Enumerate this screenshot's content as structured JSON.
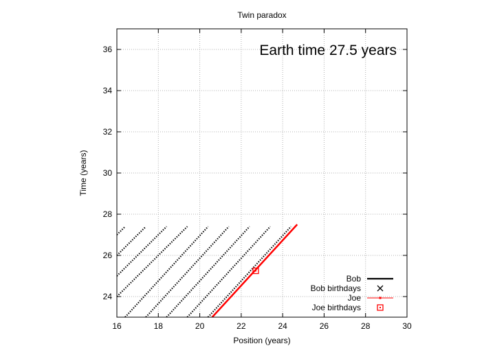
{
  "chart_data": {
    "type": "scatter",
    "title": "Twin paradox",
    "xlabel": "Position (years)",
    "ylabel": "Time (years)",
    "xlim": [
      16,
      30
    ],
    "ylim": [
      23,
      37
    ],
    "x_ticks": [
      16,
      18,
      20,
      22,
      24,
      26,
      28,
      30
    ],
    "y_ticks": [
      24,
      26,
      28,
      30,
      32,
      34,
      36
    ],
    "grid": true,
    "legend_position": "bottom-right",
    "annotation": "Earth time 27.5 years",
    "colors": {
      "bob": "#000000",
      "joe": "#ff0000"
    },
    "series": [
      {
        "name": "Bob",
        "kind": "worldlines",
        "color": "#000000",
        "lines": [
          {
            "x": [
              16.0,
              16.4
            ],
            "y": [
              27.0,
              27.4
            ]
          },
          {
            "x": [
              16.0,
              17.4
            ],
            "y": [
              26.0,
              27.4
            ]
          },
          {
            "x": [
              16.0,
              18.4
            ],
            "y": [
              25.0,
              27.4
            ]
          },
          {
            "x": [
              16.0,
              19.4
            ],
            "y": [
              24.0,
              27.4
            ]
          },
          {
            "x": [
              16.4,
              20.4
            ],
            "y": [
              23.0,
              27.4
            ]
          },
          {
            "x": [
              17.4,
              21.4
            ],
            "y": [
              23.0,
              27.4
            ]
          },
          {
            "x": [
              18.4,
              22.4
            ],
            "y": [
              23.0,
              27.4
            ]
          },
          {
            "x": [
              19.4,
              23.4
            ],
            "y": [
              23.0,
              27.4
            ]
          },
          {
            "x": [
              20.4,
              24.4
            ],
            "y": [
              23.0,
              27.4
            ]
          }
        ]
      },
      {
        "name": "Bob birthdays",
        "kind": "marker-x",
        "color": "#000000",
        "points": []
      },
      {
        "name": "Joe",
        "kind": "line",
        "color": "#ff0000",
        "x": [
          20.6,
          24.7
        ],
        "y": [
          23.0,
          27.5
        ]
      },
      {
        "name": "Joe birthdays",
        "kind": "marker-square",
        "color": "#ff0000",
        "points": [
          [
            22.7,
            25.25
          ]
        ]
      }
    ]
  }
}
